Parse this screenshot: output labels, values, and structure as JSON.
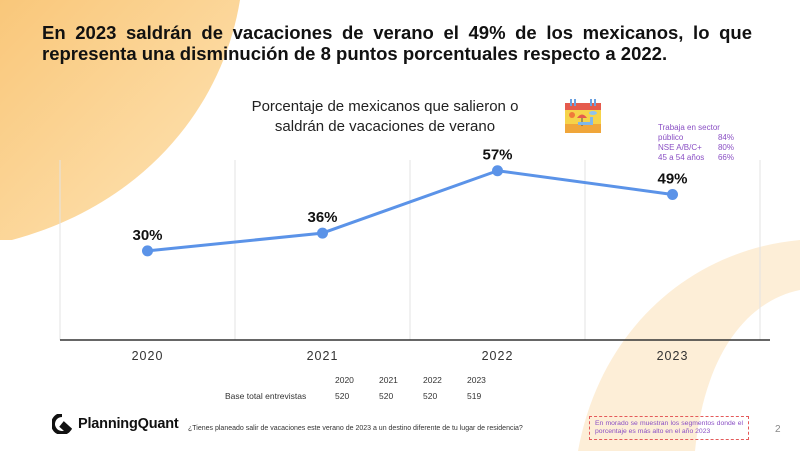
{
  "headline": "En 2023 saldrán de vacaciones de verano el 49% de los mexicanos, lo que representa una disminución de 8 puntos porcentuales respecto a 2022.",
  "chart_title_line1": "Porcentaje de mexicanos que salieron o",
  "chart_title_line2": "saldrán de vacaciones de verano",
  "calendar_icon": "summer-calendar-icon",
  "segments": {
    "title": "Trabaja en sector",
    "rows": [
      {
        "label": "público",
        "value": "84%"
      },
      {
        "label": "NSE A/B/C+",
        "value": "80%"
      },
      {
        "label": "45 a 54 años",
        "value": "66%"
      }
    ]
  },
  "chart_data": {
    "type": "line",
    "title": "Porcentaje de mexicanos que salieron o saldrán de vacaciones de verano",
    "categories": [
      "2020",
      "2021",
      "2022",
      "2023"
    ],
    "series": [
      {
        "name": "Porcentaje",
        "values": [
          30,
          36,
          57,
          49
        ],
        "labels": [
          "30%",
          "36%",
          "57%",
          "49%"
        ],
        "color": "#5b93e8"
      }
    ],
    "xlabel": "",
    "ylabel": "",
    "ylim": [
      0,
      66
    ],
    "grid": "vertical",
    "legend": "none"
  },
  "base_table": {
    "years": [
      "2020",
      "2021",
      "2022",
      "2023"
    ],
    "label": "Base total entrevistas",
    "values": [
      "520",
      "520",
      "520",
      "519"
    ]
  },
  "brand": {
    "name": "PlanningQuant"
  },
  "question": "¿Tienes planeado salir de vacaciones este verano de 2023 a un destino diferente de tu lugar de residencia?",
  "note": "En morado se muestran los segmentos donde el porcentaje es más alto en el año 2023",
  "page_number": "2",
  "colors": {
    "accent": "#5b93e8",
    "segment_purple": "#8a4fc4",
    "note_border": "#e45a5a",
    "blob": "#f9c77a"
  }
}
